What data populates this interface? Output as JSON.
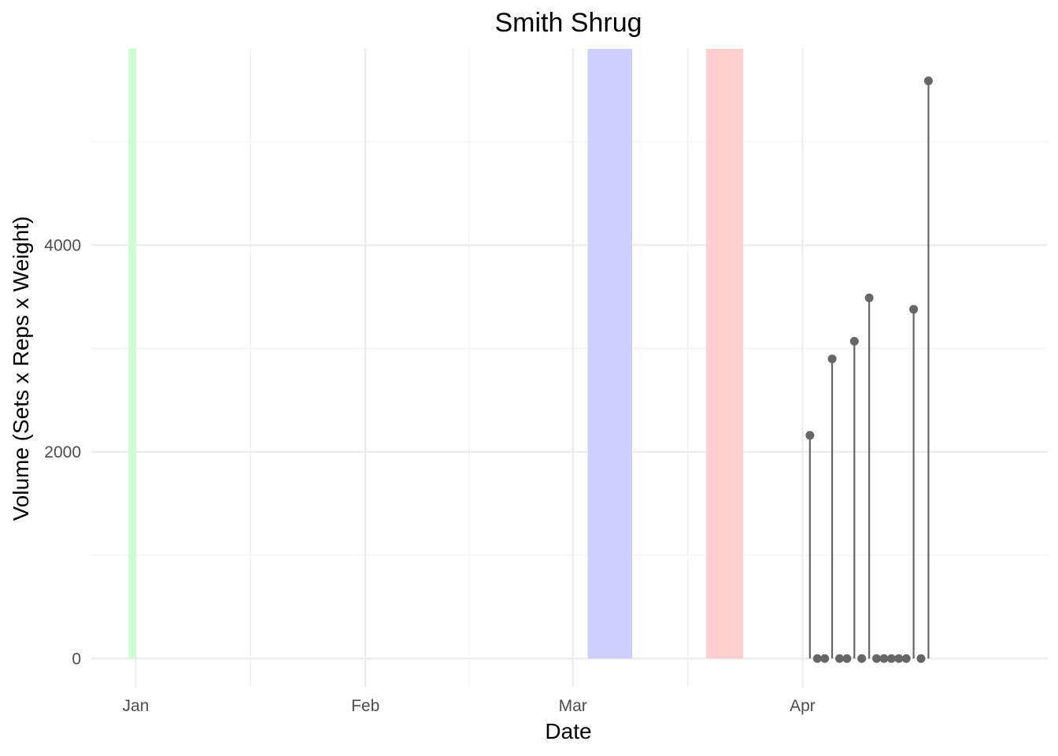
{
  "chart_data": {
    "type": "line",
    "title": "Smith Shrug",
    "xlabel": "Date",
    "ylabel": "Volume (Sets x Reps x Weight)",
    "x_ticks": [
      {
        "date": "2022-12-31",
        "label": "Jan"
      },
      {
        "date": "2023-01-31",
        "label": "Feb"
      },
      {
        "date": "2023-02-28",
        "label": "Mar"
      },
      {
        "date": "2023-03-31",
        "label": "Apr"
      }
    ],
    "y_ticks": [
      0,
      2000,
      4000
    ],
    "xlim": [
      "2022-12-25",
      "2023-05-03"
    ],
    "ylim": [
      -280,
      5900
    ],
    "grid": true,
    "style": "lollipop",
    "point_color": "#666666",
    "bands": [
      {
        "start": "2022-12-30",
        "end": "2022-12-31",
        "color": "#ccffcc"
      },
      {
        "start": "2023-03-02",
        "end": "2023-03-08",
        "color": "#ccccff"
      },
      {
        "start": "2023-03-18",
        "end": "2023-03-23",
        "color": "#ffcccc"
      }
    ],
    "series": [
      {
        "points": [
          {
            "date": "2023-04-01",
            "value": 2160
          },
          {
            "date": "2023-04-02",
            "value": 0
          },
          {
            "date": "2023-04-03",
            "value": 0
          },
          {
            "date": "2023-04-04",
            "value": 2900
          },
          {
            "date": "2023-04-05",
            "value": 0
          },
          {
            "date": "2023-04-06",
            "value": 0
          },
          {
            "date": "2023-04-07",
            "value": 3070
          },
          {
            "date": "2023-04-08",
            "value": 0
          },
          {
            "date": "2023-04-09",
            "value": 3490
          },
          {
            "date": "2023-04-10",
            "value": 0
          },
          {
            "date": "2023-04-11",
            "value": 0
          },
          {
            "date": "2023-04-12",
            "value": 0
          },
          {
            "date": "2023-04-13",
            "value": 0
          },
          {
            "date": "2023-04-14",
            "value": 0
          },
          {
            "date": "2023-04-15",
            "value": 3380
          },
          {
            "date": "2023-04-16",
            "value": 0
          },
          {
            "date": "2023-04-17",
            "value": 5590
          }
        ]
      }
    ]
  }
}
